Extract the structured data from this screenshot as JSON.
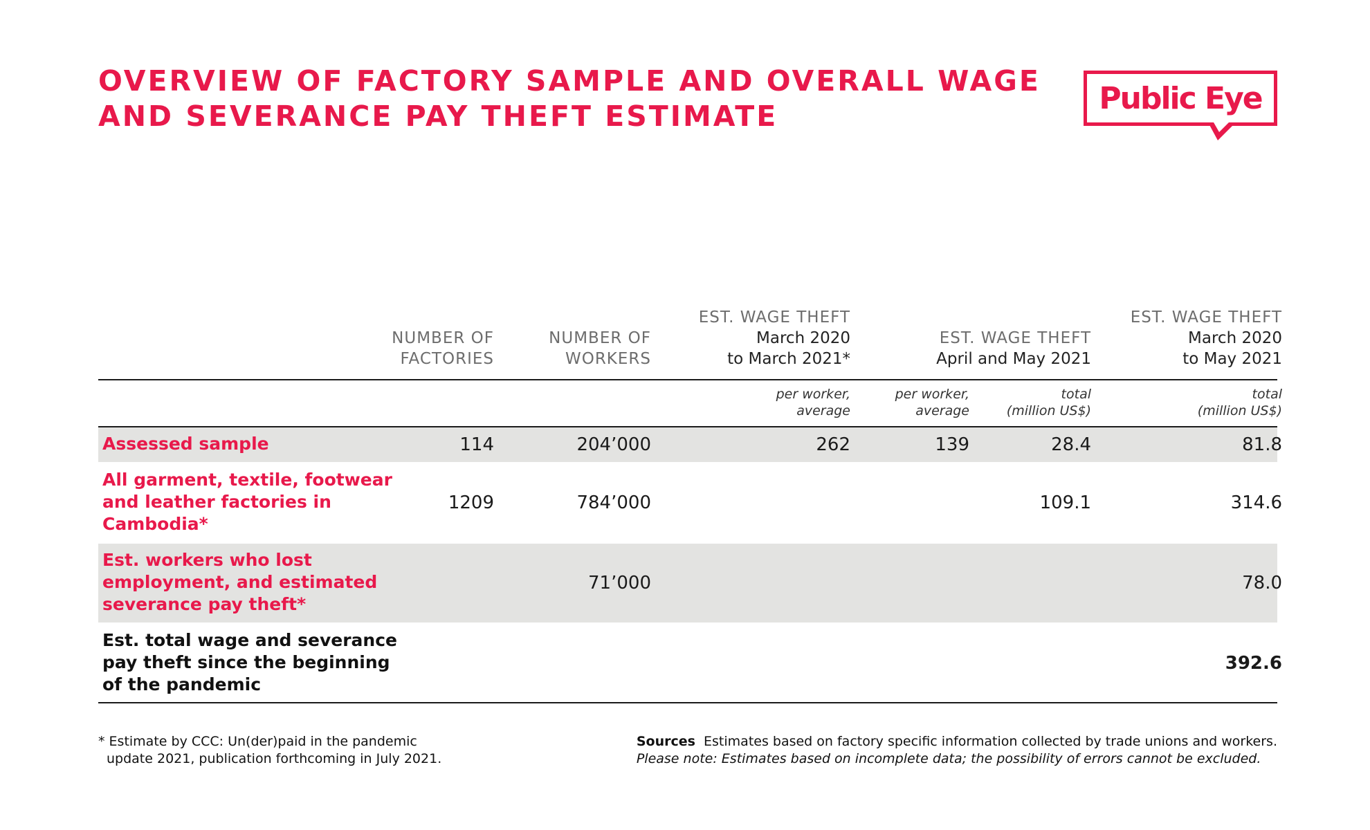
{
  "title": {
    "line1": "OVERVIEW OF FACTORY SAMPLE AND OVERALL WAGE",
    "line2": "AND SEVERANCE PAY THEFT ESTIMATE"
  },
  "logo": {
    "text": "Public Eye"
  },
  "colors": {
    "accent": "#e8194b",
    "row_shade": "#e3e3e1",
    "text": "#1a1a1a",
    "header_gray": "#6d6d6d"
  },
  "columns": {
    "factories": {
      "line1": "NUMBER OF",
      "line2": "FACTORIES"
    },
    "workers": {
      "line1": "NUMBER OF",
      "line2": "WORKERS"
    },
    "wage_theft_year": {
      "line1": "EST. WAGE THEFT",
      "line2": "March 2020",
      "line3": "to March 2021*"
    },
    "wage_theft_aprmay": {
      "line1": "EST. WAGE THEFT",
      "line2": "April and May 2021"
    },
    "wage_theft_total": {
      "line1": "EST. WAGE THEFT",
      "line2": "March 2020",
      "line3": "to May 2021"
    }
  },
  "subheaders": {
    "year_per_worker": {
      "line1": "per worker,",
      "line2": "average"
    },
    "aprmay_per_worker": {
      "line1": "per worker,",
      "line2": "average"
    },
    "aprmay_total": {
      "line1": "total",
      "line2": "(million US$)"
    },
    "overall_total": {
      "line1": "total",
      "line2": "(million US$)"
    }
  },
  "rows": [
    {
      "label_lines": [
        "Assessed sample"
      ],
      "factories": "114",
      "workers": "204’000",
      "year_per_worker": "262",
      "aprmay_per_worker": "139",
      "aprmay_total": "28.4",
      "overall_total": "81.8"
    },
    {
      "label_lines": [
        "All garment, textile, footwear",
        "and leather factories in",
        "Cambodia*"
      ],
      "factories": "1209",
      "workers": "784’000",
      "aprmay_total": "109.1",
      "overall_total": "314.6"
    },
    {
      "label_lines": [
        "Est. workers who lost",
        "employment, and estimated",
        "severance pay theft*"
      ],
      "workers": "71’000",
      "overall_total": "78.0"
    },
    {
      "label_lines": [
        "Est. total wage and severance",
        "pay theft since the beginning",
        "of the pandemic"
      ],
      "overall_total": "392.6"
    }
  ],
  "footnote": {
    "line1": "* Estimate by CCC: Un(der)paid in the pandemic",
    "line2": "update 2021, publication forthcoming in July 2021."
  },
  "sources": {
    "label": "Sources",
    "text": "Estimates based on factory specific information collected by trade unions and workers.",
    "note": "Please note: Estimates based on incomplete data; the possibility of errors cannot be excluded."
  }
}
